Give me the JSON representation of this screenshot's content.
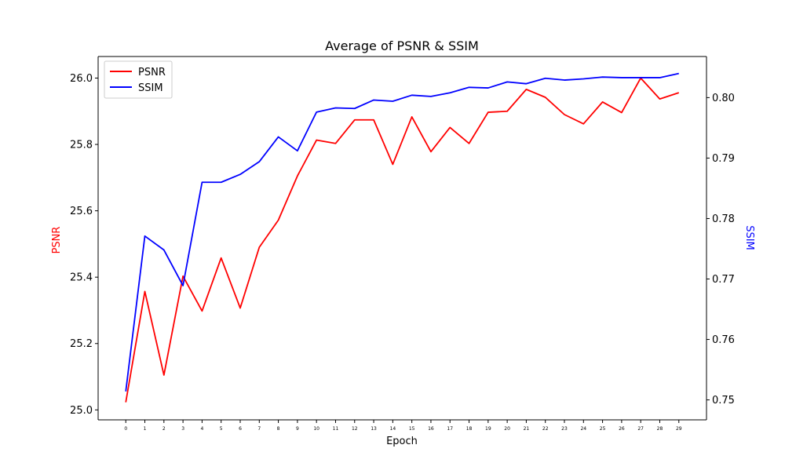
{
  "chart_data": {
    "type": "line",
    "title": "Average of PSNR & SSIM",
    "xlabel": "Epoch",
    "ylabel_left": "PSNR",
    "ylabel_right": "SSIM",
    "x": [
      0,
      1,
      2,
      3,
      4,
      5,
      6,
      7,
      8,
      9,
      10,
      11,
      12,
      13,
      14,
      15,
      16,
      17,
      18,
      19,
      20,
      21,
      22,
      23,
      24,
      25,
      26,
      27,
      28,
      29
    ],
    "x_tick_labels": [
      "0",
      "1",
      "2",
      "3",
      "4",
      "5",
      "6",
      "7",
      "8",
      "9",
      "10",
      "11",
      "12",
      "13",
      "14",
      "15",
      "16",
      "17",
      "18",
      "19",
      "20",
      "21",
      "22",
      "23",
      "24",
      "25",
      "26",
      "27",
      "28",
      "29"
    ],
    "xlim": [
      -1.45,
      30.45
    ],
    "ylim_left": [
      24.97,
      26.065
    ],
    "ylim_right": [
      0.7467,
      0.8068
    ],
    "left_ticks": [
      25.0,
      25.2,
      25.4,
      25.6,
      25.8,
      26.0
    ],
    "left_tick_labels": [
      "25.0",
      "25.2",
      "25.4",
      "25.6",
      "25.8",
      "26.0"
    ],
    "right_ticks": [
      0.75,
      0.76,
      0.77,
      0.78,
      0.79,
      0.8
    ],
    "right_tick_labels": [
      "0.75",
      "0.76",
      "0.77",
      "0.78",
      "0.79",
      "0.80"
    ],
    "grid": false,
    "legend_position": "top-left",
    "series": [
      {
        "name": "PSNR",
        "axis": "left",
        "color": "#ff0000",
        "values": [
          25.023,
          25.357,
          25.105,
          25.403,
          25.298,
          25.458,
          25.307,
          25.49,
          25.572,
          25.705,
          25.813,
          25.803,
          25.874,
          25.874,
          25.74,
          25.883,
          25.778,
          25.851,
          25.803,
          25.897,
          25.9,
          25.966,
          25.942,
          25.89,
          25.862,
          25.928,
          25.896,
          26.0,
          25.937,
          25.956
        ]
      },
      {
        "name": "SSIM",
        "axis": "right",
        "color": "#0000ff",
        "values": [
          0.7514,
          0.7771,
          0.7748,
          0.7689,
          0.786,
          0.786,
          0.7873,
          0.7894,
          0.7935,
          0.7912,
          0.7976,
          0.7983,
          0.7982,
          0.7996,
          0.7994,
          0.8004,
          0.8002,
          0.8008,
          0.8017,
          0.8016,
          0.8026,
          0.8023,
          0.8032,
          0.8029,
          0.8031,
          0.8034,
          0.8033,
          0.8033,
          0.8033,
          0.804
        ]
      }
    ]
  }
}
